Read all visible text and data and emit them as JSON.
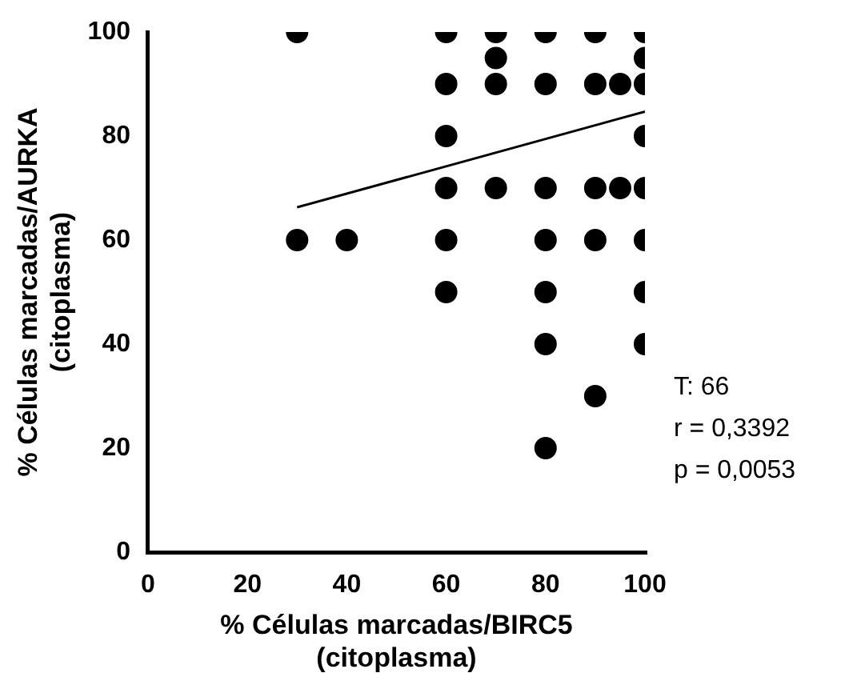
{
  "chart_data": {
    "type": "scatter",
    "xlabel": "% Células marcadas/BIRC5\n(citoplasma)",
    "ylabel": "% Células marcadas/AURKA\n(citoplasma)",
    "xlim": [
      0,
      100
    ],
    "xticks": [
      0,
      20,
      40,
      60,
      80,
      100
    ],
    "ylim": [
      0,
      100
    ],
    "yticks": [
      0,
      20,
      40,
      60,
      80,
      100
    ],
    "grid": false,
    "legend": false,
    "marker": "circle",
    "annotations": [
      "T: 66",
      "r = 0,3392",
      "p = 0,0053"
    ],
    "series": [
      {
        "color": "#000000",
        "x": [
          30,
          30,
          40,
          60,
          60,
          60,
          60,
          60,
          60,
          70,
          70,
          70,
          70,
          80,
          80,
          80,
          80,
          80,
          80,
          80,
          90,
          90,
          90,
          90,
          90,
          95,
          95,
          100,
          100,
          100,
          100,
          100,
          100,
          100,
          100
        ],
        "values": [
          100,
          60,
          60,
          100,
          90,
          80,
          70,
          60,
          50,
          100,
          95,
          90,
          70,
          100,
          90,
          70,
          60,
          50,
          40,
          20,
          100,
          90,
          70,
          60,
          30,
          90,
          70,
          100,
          95,
          90,
          80,
          70,
          60,
          50,
          40
        ]
      },
      {
        "type": "line",
        "color": "#000000",
        "marker": "none",
        "x": [
          30,
          100
        ],
        "values": [
          66.3,
          84.7
        ]
      }
    ]
  }
}
